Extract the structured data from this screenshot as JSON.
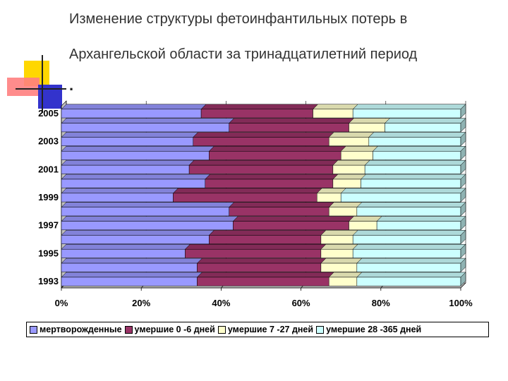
{
  "slide": {
    "title_line1": "Изменение структуры фетоинфантильных потерь в",
    "title_line2": "Архангельской области за тринадцатилетний период",
    "bullet": "."
  },
  "colors": {
    "series": [
      "#9999ff",
      "#993366",
      "#ffffcc",
      "#ccffff"
    ],
    "grid": "#000000",
    "depth": "#c0c0c0",
    "back_wall": "#ffffff"
  },
  "chart_data": {
    "type": "bar",
    "orientation": "horizontal",
    "stacked": "100%",
    "title": "",
    "xlabel": "",
    "ylabel": "",
    "xlim": [
      0,
      100
    ],
    "x_ticks": [
      "0%",
      "20%",
      "40%",
      "60%",
      "80%",
      "100%"
    ],
    "categories": [
      "1993",
      "1994",
      "1995",
      "1996",
      "1997",
      "1998",
      "1999",
      "2000",
      "2001",
      "2002",
      "2003",
      "2004",
      "2005"
    ],
    "y_tick_labels": [
      "1993",
      "",
      "1995",
      "",
      "1997",
      "",
      "1999",
      "",
      "2001",
      "",
      "2003",
      "",
      "2005"
    ],
    "series": [
      {
        "name": "мертворожденные",
        "values": [
          34,
          34,
          31,
          37,
          43,
          42,
          28,
          36,
          32,
          37,
          33,
          42,
          35
        ]
      },
      {
        "name": "умершие 0 -6 дней",
        "values": [
          33,
          31,
          34,
          28,
          29,
          25,
          36,
          32,
          36,
          33,
          34,
          30,
          28
        ]
      },
      {
        "name": "умершие 7 -27 дней",
        "values": [
          7,
          9,
          8,
          8,
          7,
          7,
          6,
          7,
          8,
          8,
          10,
          9,
          10
        ]
      },
      {
        "name": "умершие 28 -365 дней",
        "values": [
          26,
          26,
          27,
          27,
          21,
          26,
          30,
          25,
          24,
          22,
          23,
          19,
          27
        ]
      }
    ],
    "legend": [
      "мертворожденные",
      "умершие 0 -6 дней",
      "умершие 7 -27 дней",
      "умершие 28 -365 дней"
    ],
    "legend_position": "bottom"
  }
}
